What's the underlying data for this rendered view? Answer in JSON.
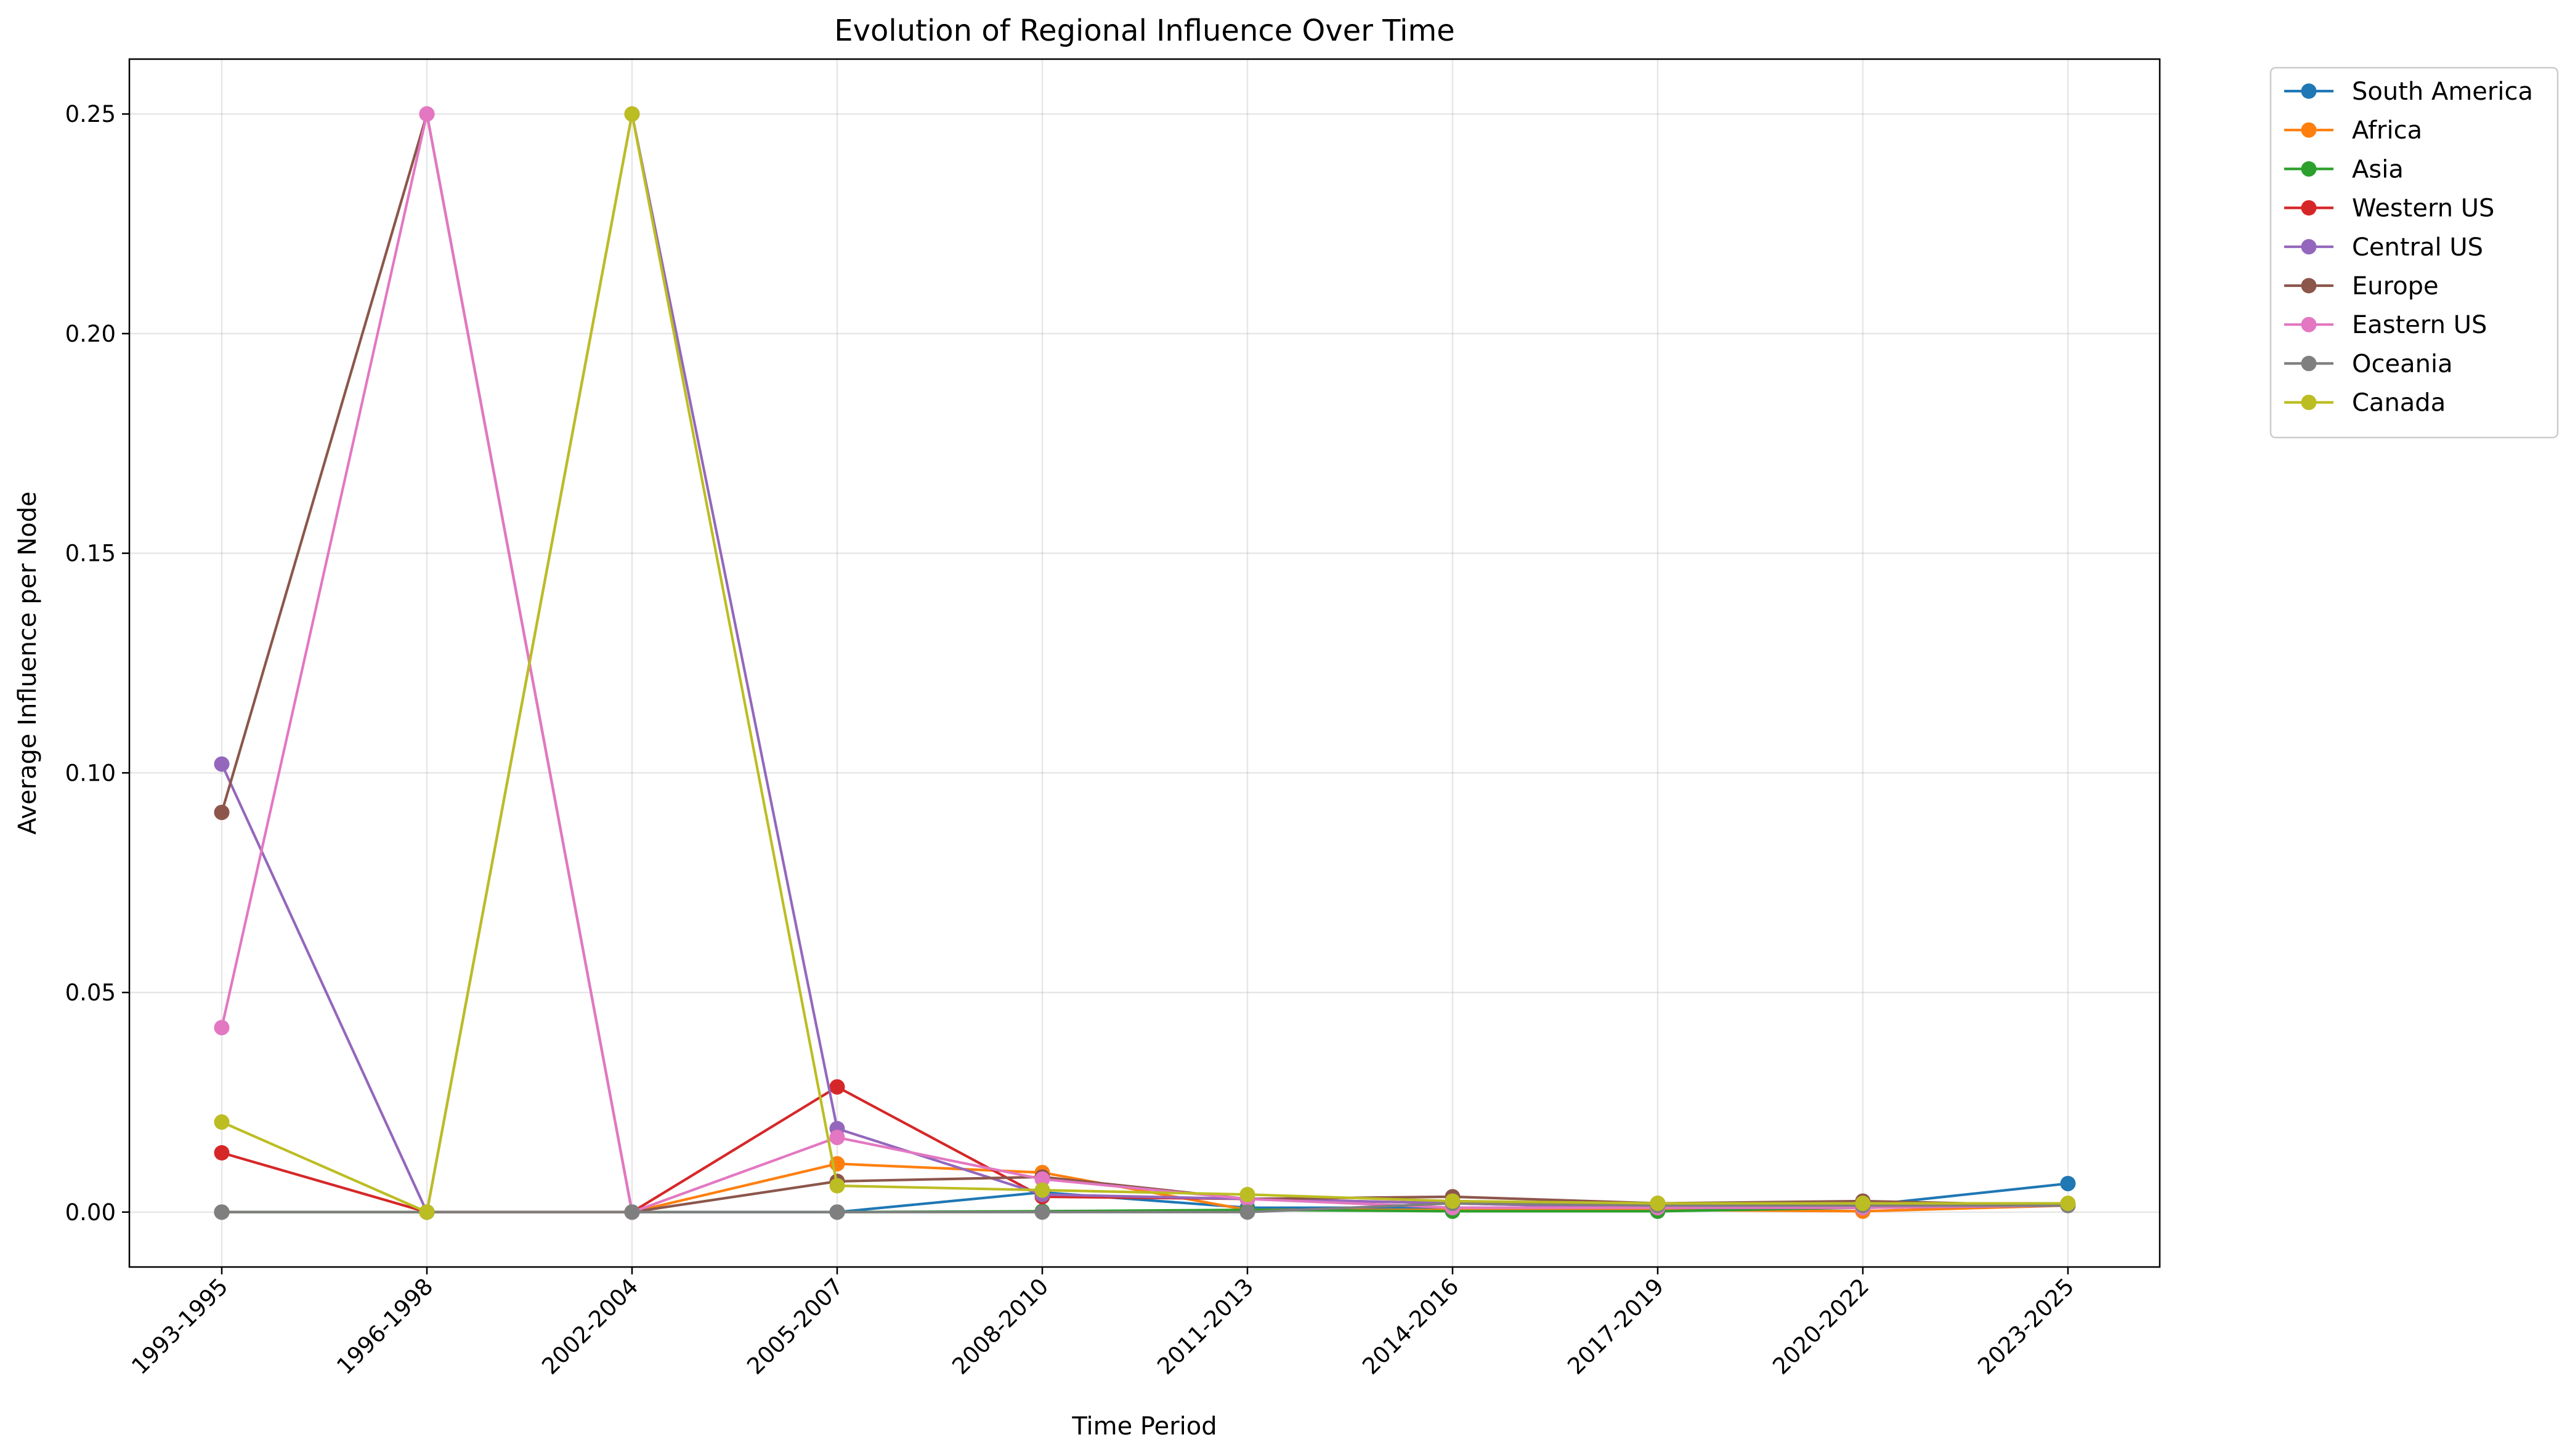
{
  "chart_data": {
    "type": "line",
    "title": "Evolution of Regional Influence Over Time",
    "xlabel": "Time Period",
    "ylabel": "Average Influence per Node",
    "categories": [
      "1993-1995",
      "1996-1998",
      "2002-2004",
      "2005-2007",
      "2008-2010",
      "2011-2013",
      "2014-2016",
      "2017-2019",
      "2020-2022",
      "2023-2025"
    ],
    "ylim": [
      -0.0125,
      0.2625
    ],
    "yticks": [
      "0.00",
      "0.05",
      "0.10",
      "0.15",
      "0.20",
      "0.25"
    ],
    "grid": true,
    "legend_position": "outside-top-right",
    "series": [
      {
        "name": "South America",
        "color": "#1f77b4",
        "values": [
          0.0,
          0.0,
          0.0,
          0.0,
          0.0045,
          0.001,
          0.001,
          0.001,
          0.0015,
          0.0065
        ]
      },
      {
        "name": "Africa",
        "color": "#ff7f0e",
        "values": [
          0.0,
          0.0,
          0.0,
          0.011,
          0.009,
          0.0005,
          0.0005,
          0.0005,
          0.0002,
          0.0015
        ]
      },
      {
        "name": "Asia",
        "color": "#2ca02c",
        "values": [
          0.0,
          0.0,
          0.0,
          0.0,
          0.0002,
          0.0005,
          0.0002,
          0.0002,
          0.001,
          0.0015
        ]
      },
      {
        "name": "Western US",
        "color": "#d62728",
        "values": [
          0.0135,
          0.0,
          0.0,
          0.0285,
          0.0035,
          0.003,
          0.002,
          0.001,
          0.001,
          0.0015
        ]
      },
      {
        "name": "Central US",
        "color": "#9467bd",
        "values": [
          0.102,
          0.0,
          0.25,
          0.019,
          0.004,
          0.003,
          0.002,
          0.001,
          0.001,
          0.0015
        ]
      },
      {
        "name": "Europe",
        "color": "#8c564b",
        "values": [
          0.091,
          0.25,
          0.0,
          0.007,
          0.008,
          0.003,
          0.0035,
          0.002,
          0.0025,
          0.0015
        ]
      },
      {
        "name": "Eastern US",
        "color": "#e377c2",
        "values": [
          0.042,
          0.25,
          0.0,
          0.017,
          0.0075,
          0.003,
          0.001,
          0.001,
          0.001,
          0.0015
        ]
      },
      {
        "name": "Oceania",
        "color": "#7f7f7f",
        "values": [
          0.0,
          0.0,
          0.0,
          0.0,
          0.0,
          0.0,
          0.002,
          0.0015,
          0.0015,
          0.0015
        ]
      },
      {
        "name": "Canada",
        "color": "#bcbd22",
        "values": [
          0.0205,
          0.0,
          0.25,
          0.006,
          0.005,
          0.004,
          0.0025,
          0.002,
          0.002,
          0.002
        ]
      }
    ]
  }
}
